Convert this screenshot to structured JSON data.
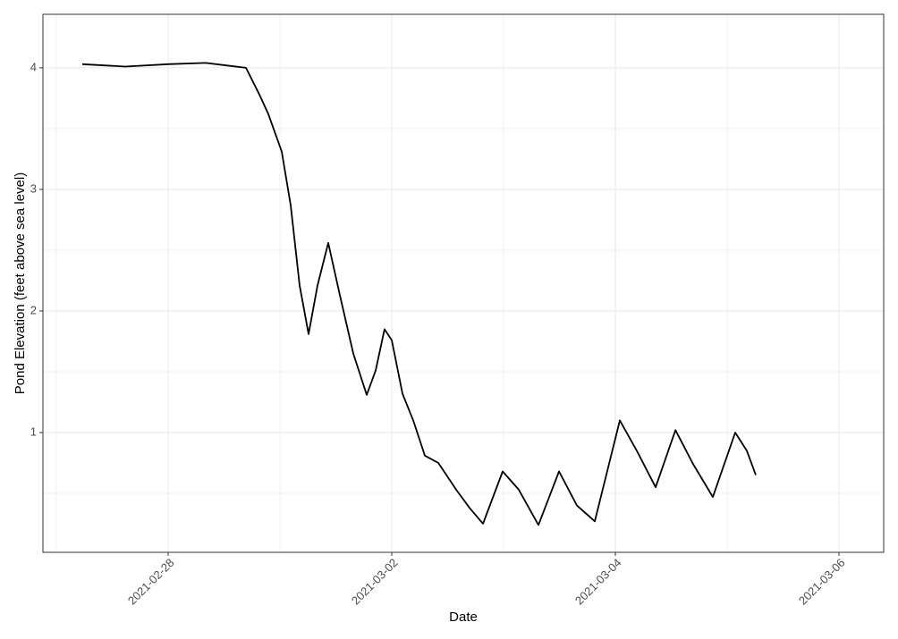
{
  "chart_data": {
    "type": "line",
    "x_label": "Date",
    "y_label": "Pond Elevation (feet above sea level)",
    "x": [
      "2021-02-27T05:35Z",
      "2021-02-27T14:48Z",
      "2021-02-28T00:00Z",
      "2021-02-28T08:04Z",
      "2021-02-28T16:42Z",
      "2021-02-28T19:35Z",
      "2021-02-28T21:30Z",
      "2021-03-01T00:23Z",
      "2021-03-01T02:18Z",
      "2021-03-01T04:13Z",
      "2021-03-01T06:09Z",
      "2021-03-01T08:04Z",
      "2021-03-01T10:22Z",
      "2021-03-01T12:52Z",
      "2021-03-01T15:44Z",
      "2021-03-01T18:37Z",
      "2021-03-01T20:32Z",
      "2021-03-01T22:27Z",
      "2021-03-02T00:00Z",
      "2021-03-02T02:18Z",
      "2021-03-02T04:36Z",
      "2021-03-02T07:06Z",
      "2021-03-02T10:00Z",
      "2021-03-02T13:49Z",
      "2021-03-02T16:42Z",
      "2021-03-02T19:35Z",
      "2021-03-02T23:48Z",
      "2021-03-03T03:16Z",
      "2021-03-03T07:29Z",
      "2021-03-03T11:54Z",
      "2021-03-03T15:44Z",
      "2021-03-03T19:35Z",
      "2021-03-04T00:58Z",
      "2021-03-04T04:36Z",
      "2021-03-04T08:38Z",
      "2021-03-04T12:54Z",
      "2021-03-04T16:42Z",
      "2021-03-04T20:56Z",
      "2021-03-05T01:44Z",
      "2021-03-05T04:13Z",
      "2021-03-05T06:09Z"
    ],
    "series": [
      {
        "name": "Pond Elevation",
        "color": "#000000",
        "values": [
          4.03,
          4.01,
          4.03,
          4.04,
          4.0,
          3.78,
          3.62,
          3.31,
          2.87,
          2.21,
          1.81,
          2.21,
          2.56,
          2.13,
          1.65,
          1.31,
          1.51,
          1.85,
          1.76,
          1.32,
          1.1,
          0.81,
          0.75,
          0.53,
          0.38,
          0.25,
          0.68,
          0.53,
          0.24,
          0.68,
          0.4,
          0.27,
          1.1,
          0.85,
          0.55,
          1.02,
          0.74,
          0.47,
          1.0,
          0.85,
          0.65
        ]
      }
    ],
    "xlim": [
      "2021-02-26T21:07Z",
      "2021-03-06T09:36Z"
    ],
    "xticks": [
      "2021-02-28",
      "2021-03-02",
      "2021-03-04",
      "2021-03-06"
    ],
    "ylim": [
      0.015,
      4.44
    ],
    "yticks": [
      1,
      2,
      3,
      4
    ],
    "grid": true,
    "minor_grid": true
  }
}
